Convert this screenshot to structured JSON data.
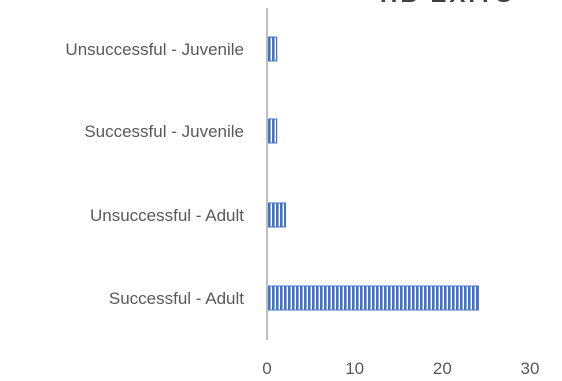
{
  "chart_data": {
    "type": "bar",
    "orientation": "horizontal",
    "title": "HB EXITS",
    "categories": [
      "Unsuccessful - Juvenile",
      "Successful - Juvenile",
      "Unsuccessful - Adult",
      "Successful - Adult"
    ],
    "values": [
      1,
      1,
      2,
      24
    ],
    "xlim": [
      0,
      30
    ],
    "x_ticks": [
      0,
      10,
      20,
      30
    ],
    "grid": false,
    "bar_color": "#4472C4",
    "bar_pattern": "vertical-stripes"
  }
}
